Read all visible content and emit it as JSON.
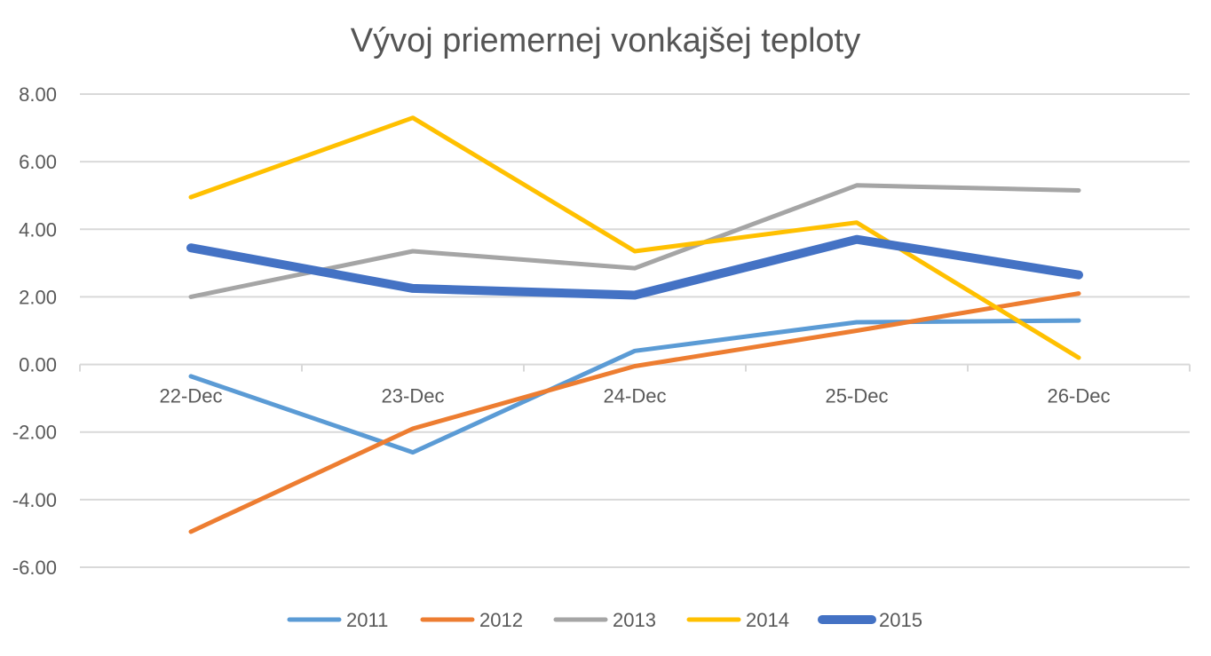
{
  "chart_data": {
    "type": "line",
    "title": "Vývoj priemernej vonkajšej teploty",
    "xlabel": "",
    "ylabel": "",
    "categories": [
      "22-Dec",
      "23-Dec",
      "24-Dec",
      "25-Dec",
      "26-Dec"
    ],
    "ylim": [
      -6,
      8
    ],
    "yticks": [
      8,
      6,
      4,
      2,
      0,
      -2,
      -4,
      -6
    ],
    "ytick_labels": [
      "8.00",
      "6.00",
      "4.00",
      "2.00",
      "0.00",
      "-2.00",
      "-4.00",
      "-6.00"
    ],
    "grid": true,
    "legend_position": "bottom",
    "series": [
      {
        "name": "2011",
        "color": "#5B9BD5",
        "values": [
          -0.35,
          -2.6,
          0.4,
          1.25,
          1.3
        ]
      },
      {
        "name": "2012",
        "color": "#ED7D31",
        "values": [
          -4.95,
          -1.9,
          -0.05,
          1.0,
          2.1
        ]
      },
      {
        "name": "2013",
        "color": "#A5A5A5",
        "values": [
          2.0,
          3.35,
          2.85,
          5.3,
          5.15
        ]
      },
      {
        "name": "2014",
        "color": "#FFC000",
        "values": [
          4.95,
          7.3,
          3.35,
          4.2,
          0.2
        ]
      },
      {
        "name": "2015",
        "color": "#4472C4",
        "values": [
          3.45,
          2.25,
          2.05,
          3.7,
          2.65
        ]
      }
    ]
  }
}
